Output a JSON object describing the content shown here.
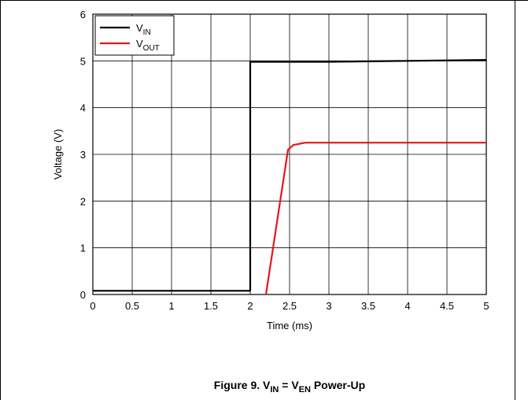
{
  "chart_data": {
    "type": "line",
    "caption": {
      "prefix": "Figure 9. V",
      "sub1": "IN",
      "mid": " = V",
      "sub2": "EN",
      "suffix": " Power-Up"
    },
    "xlabel": "Time (ms)",
    "ylabel": "Voltage (V)",
    "xlim": [
      0,
      5
    ],
    "ylim": [
      0,
      6
    ],
    "x_ticks": [
      "0",
      "0.5",
      "1",
      "1.5",
      "2",
      "2.5",
      "3",
      "3.5",
      "4",
      "4.5",
      "5"
    ],
    "y_ticks": [
      "0",
      "1",
      "2",
      "3",
      "4",
      "5",
      "6"
    ],
    "grid": true,
    "legend_position": "top-left",
    "series": [
      {
        "name_main": "V",
        "name_sub": "IN",
        "color": "#000000",
        "points": [
          [
            0,
            0.08
          ],
          [
            2.0,
            0.08
          ],
          [
            2.0,
            4.98
          ],
          [
            3.0,
            4.98
          ],
          [
            4.0,
            5.0
          ],
          [
            5.0,
            5.02
          ]
        ]
      },
      {
        "name_main": "V",
        "name_sub": "OUT",
        "color": "#e8141b",
        "points": [
          [
            2.2,
            0.0
          ],
          [
            2.48,
            3.1
          ],
          [
            2.55,
            3.2
          ],
          [
            2.7,
            3.25
          ],
          [
            5.0,
            3.25
          ]
        ]
      }
    ]
  }
}
